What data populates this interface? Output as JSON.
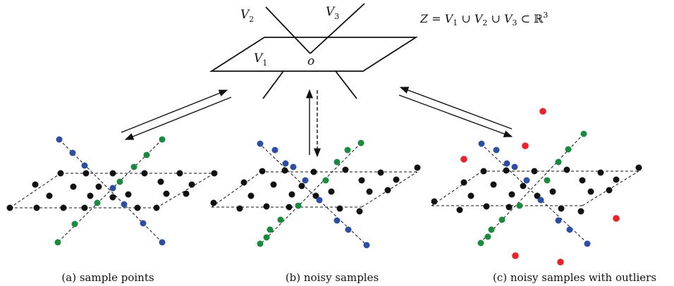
{
  "formula": "Z = V1 ∪ V2 ∪ V3 ⊂ ℝ3",
  "formula_parts": {
    "z": "Z",
    "eq": " = ",
    "v": "V",
    "i1": "1",
    "i2": "2",
    "i3": "3",
    "cup": " ∪ ",
    "subset": " ⊂ ",
    "r": "ℝ",
    "exp": "3"
  },
  "labels": {
    "v1": "V",
    "v1_sub": "1",
    "v2": "V",
    "v2_sub": "2",
    "v3": "V",
    "v3_sub": "3",
    "origin": "o"
  },
  "captions": [
    "(a) sample points",
    "(b) noisy samples",
    "(c) noisy samples with outliers"
  ],
  "colors": {
    "plane": "#111111",
    "v2": "#2d4ea1",
    "v3": "#1a8a3e",
    "outlier": "#e8242b",
    "text": "#111111"
  }
}
